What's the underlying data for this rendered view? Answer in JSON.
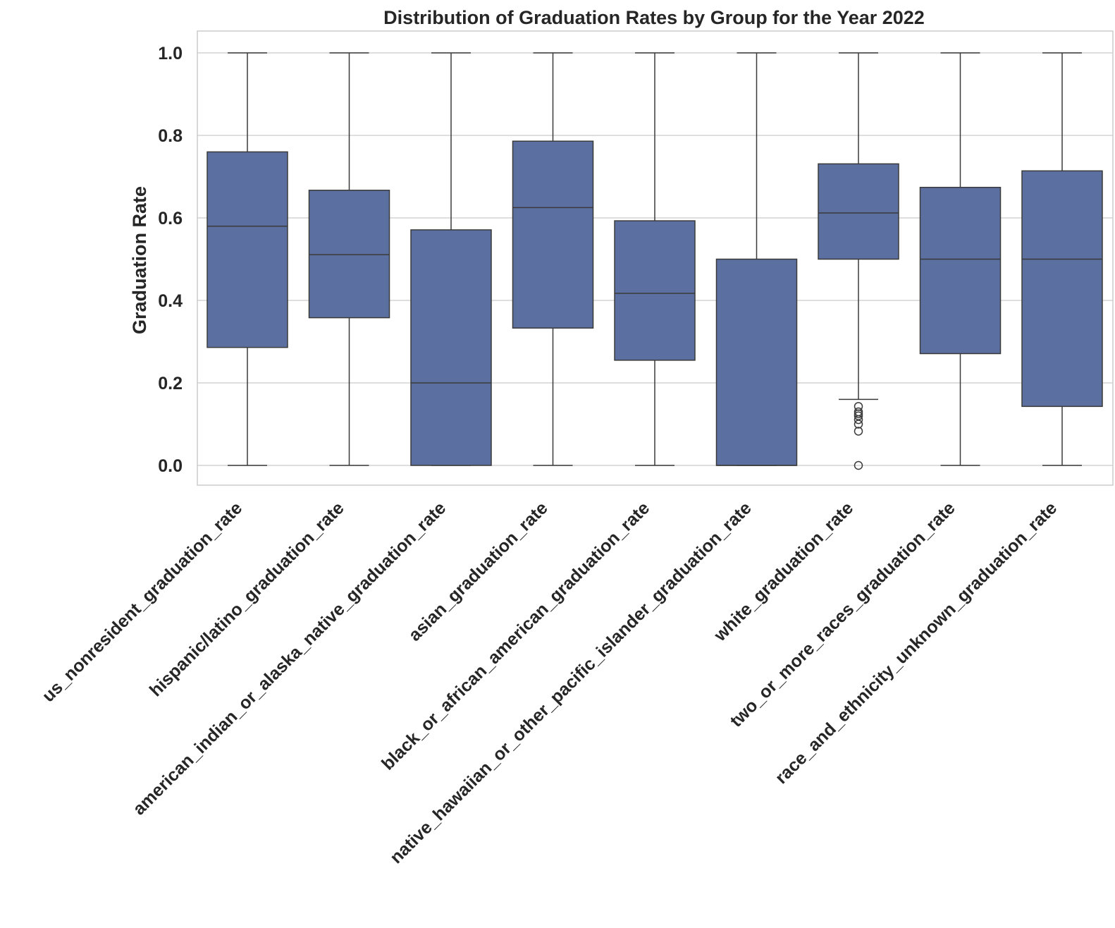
{
  "chart_data": {
    "type": "box",
    "title": "Distribution of Graduation Rates by Group for the Year 2022",
    "xlabel": "",
    "ylabel": "Graduation Rate",
    "ylim": [
      -0.05,
      1.05
    ],
    "yticks": [
      0.0,
      0.2,
      0.4,
      0.6,
      0.8,
      1.0
    ],
    "ytick_labels": [
      "0.0",
      "0.2",
      "0.4",
      "0.6",
      "0.8",
      "1.0"
    ],
    "grid": true,
    "legend": "none",
    "box_color": "#5b6fa0",
    "edge_color": "#3a3a3a",
    "categories": [
      "us_nonresident_graduation_rate",
      "hispanic/latino_graduation_rate",
      "american_indian_or_alaska_native_graduation_rate",
      "asian_graduation_rate",
      "black_or_african_american_graduation_rate",
      "native_hawaiian_or_other_pacific_islander_graduation_rate",
      "white_graduation_rate",
      "two_or_more_races_graduation_rate",
      "race_and_ethnicity_unknown_graduation_rate"
    ],
    "boxes": [
      {
        "whisker_low": 0.0,
        "q1": 0.286,
        "median": 0.58,
        "q3": 0.76,
        "whisker_high": 1.0,
        "outliers": []
      },
      {
        "whisker_low": 0.0,
        "q1": 0.358,
        "median": 0.511,
        "q3": 0.667,
        "whisker_high": 1.0,
        "outliers": []
      },
      {
        "whisker_low": 0.0,
        "q1": 0.0,
        "median": 0.2,
        "q3": 0.571,
        "whisker_high": 1.0,
        "outliers": []
      },
      {
        "whisker_low": 0.0,
        "q1": 0.333,
        "median": 0.625,
        "q3": 0.786,
        "whisker_high": 1.0,
        "outliers": []
      },
      {
        "whisker_low": 0.0,
        "q1": 0.255,
        "median": 0.417,
        "q3": 0.593,
        "whisker_high": 1.0,
        "outliers": []
      },
      {
        "whisker_low": 0.0,
        "q1": 0.0,
        "median": 0.0,
        "q3": 0.5,
        "whisker_high": 1.0,
        "outliers": []
      },
      {
        "whisker_low": 0.16,
        "q1": 0.5,
        "median": 0.612,
        "q3": 0.731,
        "whisker_high": 1.0,
        "outliers": [
          0.143,
          0.13,
          0.125,
          0.12,
          0.111,
          0.1,
          0.083,
          0.0
        ]
      },
      {
        "whisker_low": 0.0,
        "q1": 0.271,
        "median": 0.5,
        "q3": 0.674,
        "whisker_high": 1.0,
        "outliers": []
      },
      {
        "whisker_low": 0.0,
        "q1": 0.143,
        "median": 0.5,
        "q3": 0.714,
        "whisker_high": 1.0,
        "outliers": []
      }
    ]
  }
}
